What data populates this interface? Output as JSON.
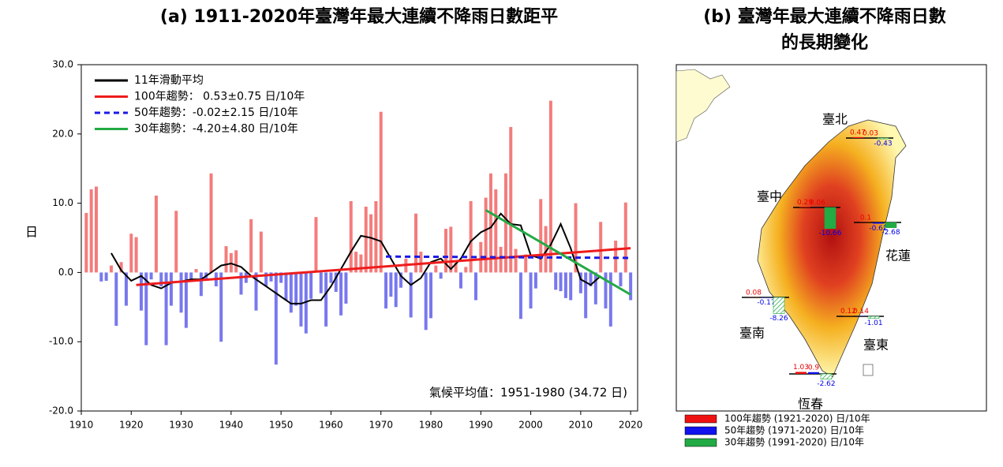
{
  "chart_data": {
    "type": "bar",
    "title": "(a) 1911-2020年臺灣年最大連續不降雨日數距平",
    "y_label": "日",
    "annotation": "氣候平均值：1951-1980 (34.72 日)",
    "positive_color": "#f47c7c",
    "negative_color": "#7878ee",
    "x": [
      1911,
      1912,
      1913,
      1914,
      1915,
      1916,
      1917,
      1918,
      1919,
      1920,
      1921,
      1922,
      1923,
      1924,
      1925,
      1926,
      1927,
      1928,
      1929,
      1930,
      1931,
      1932,
      1933,
      1934,
      1935,
      1936,
      1937,
      1938,
      1939,
      1940,
      1941,
      1942,
      1943,
      1944,
      1945,
      1946,
      1947,
      1948,
      1949,
      1950,
      1951,
      1952,
      1953,
      1954,
      1955,
      1956,
      1957,
      1958,
      1959,
      1960,
      1961,
      1962,
      1963,
      1964,
      1965,
      1966,
      1967,
      1968,
      1969,
      1970,
      1971,
      1972,
      1973,
      1974,
      1975,
      1976,
      1977,
      1978,
      1979,
      1980,
      1981,
      1982,
      1983,
      1984,
      1985,
      1986,
      1987,
      1988,
      1989,
      1990,
      1991,
      1992,
      1993,
      1994,
      1995,
      1996,
      1997,
      1998,
      1999,
      2000,
      2001,
      2002,
      2003,
      2004,
      2005,
      2006,
      2007,
      2008,
      2009,
      2010,
      2011,
      2012,
      2013,
      2014,
      2015,
      2016,
      2017,
      2018,
      2019,
      2020
    ],
    "values": [
      8.6,
      12.0,
      12.4,
      -1.3,
      -1.2,
      1.0,
      -7.7,
      1.5,
      -4.8,
      5.6,
      5.1,
      -5.5,
      -10.5,
      -1.0,
      11.1,
      -2.0,
      -10.5,
      -4.8,
      8.9,
      -5.8,
      -8.0,
      -1.2,
      0.5,
      -3.4,
      -1.0,
      14.3,
      -2.0,
      -10.0,
      3.8,
      2.8,
      3.2,
      -3.2,
      -1.5,
      7.7,
      -5.5,
      5.9,
      -2.0,
      -1.3,
      -13.3,
      -1.5,
      -4.0,
      -5.8,
      -4.8,
      -7.8,
      -8.8,
      -3.8,
      8.0,
      -3.0,
      -7.8,
      -1.5,
      -2.8,
      -6.2,
      -4.5,
      10.3,
      3.0,
      2.6,
      9.5,
      8.4,
      10.3,
      23.2,
      -5.2,
      -3.5,
      -5.0,
      -2.2,
      2.0,
      -6.5,
      8.5,
      3.0,
      -8.3,
      -6.6,
      1.0,
      -0.9,
      6.3,
      6.6,
      1.4,
      -2.3,
      0.8,
      10.3,
      -4.0,
      4.4,
      10.8,
      14.3,
      12.0,
      3.7,
      14.3,
      21.0,
      3.4,
      -6.7,
      2.6,
      -5.2,
      -2.3,
      10.6,
      6.7,
      24.8,
      -2.5,
      -2.7,
      -3.7,
      -4.0,
      10.0,
      -3.0,
      -6.6,
      -2.0,
      -4.6,
      7.3,
      -5.2,
      -7.8,
      4.6,
      -2.0,
      10.1,
      -4.0
    ],
    "series": [
      {
        "name": "11年滑動平均",
        "color": "#000000",
        "dash": false,
        "x": [
          1916,
          1918,
          1920,
          1922,
          1924,
          1926,
          1928,
          1930,
          1932,
          1934,
          1936,
          1938,
          1940,
          1942,
          1944,
          1946,
          1948,
          1950,
          1952,
          1954,
          1956,
          1958,
          1960,
          1962,
          1964,
          1966,
          1968,
          1970,
          1972,
          1974,
          1976,
          1978,
          1980,
          1982,
          1984,
          1986,
          1988,
          1990,
          1992,
          1994,
          1996,
          1998,
          2000,
          2002,
          2004,
          2006,
          2008,
          2010,
          2012,
          2014
        ],
        "values": [
          2.8,
          0.3,
          -1.2,
          -0.5,
          -1.8,
          -2.3,
          -1.5,
          -1.3,
          -1.0,
          -1.0,
          0.0,
          1.0,
          1.3,
          0.8,
          -0.5,
          -1.5,
          -2.5,
          -3.5,
          -4.5,
          -4.5,
          -4.0,
          -4.0,
          -2.0,
          0.5,
          3.0,
          5.3,
          5.0,
          4.5,
          2.0,
          -0.5,
          -1.8,
          -0.8,
          1.5,
          2.0,
          0.5,
          2.0,
          4.5,
          5.8,
          6.5,
          8.5,
          7.0,
          6.8,
          2.5,
          2.0,
          4.0,
          7.0,
          3.5,
          -1.0,
          -1.8,
          -0.5
        ]
      },
      {
        "name": "100年趨勢： 0.53±0.75 日/10年",
        "color": "#ee1c1c",
        "dash": false,
        "x": [
          1921,
          2020
        ],
        "values": [
          -1.8,
          3.5
        ]
      },
      {
        "name": "50年趨勢：-0.02±2.15 日/10年",
        "color": "#1a1ae6",
        "dash": true,
        "x": [
          1971,
          2020
        ],
        "values": [
          2.3,
          2.1
        ]
      },
      {
        "name": "30年趨勢：-4.20±4.80 日/10年",
        "color": "#22aa44",
        "dash": false,
        "x": [
          1991,
          2020
        ],
        "values": [
          9.0,
          -3.2
        ]
      }
    ],
    "xlim": [
      1910,
      2021.4
    ],
    "ylim": [
      -20,
      30
    ],
    "xticks": [
      1910,
      1920,
      1930,
      1940,
      1950,
      1960,
      1970,
      1980,
      1990,
      2000,
      2010,
      2020
    ],
    "yticks": [
      {
        "value": -20,
        "label": "-20.0"
      },
      {
        "value": -10,
        "label": "-10.0"
      },
      {
        "value": 0,
        "label": "0.0"
      },
      {
        "value": 10,
        "label": "10.0"
      },
      {
        "value": 20,
        "label": "20.0"
      },
      {
        "value": 30,
        "label": "30.0"
      }
    ]
  },
  "map_panel": {
    "title_lines": [
      "(b) 臺灣年最大連續不降雨日數",
      "的長期變化"
    ],
    "stations": [
      {
        "name": "臺北",
        "values": [
          0.47,
          0.03,
          -0.43
        ],
        "significant": false
      },
      {
        "name": "臺中",
        "values": [
          0.29,
          0.06,
          -10.66
        ],
        "significant": true
      },
      {
        "name": "花蓮",
        "values": [
          0.1,
          -0.62,
          -2.68
        ],
        "significant": true
      },
      {
        "name": "臺南",
        "values": [
          0.08,
          -0.17,
          -8.26
        ],
        "significant": false
      },
      {
        "name": "臺東",
        "values": [
          0.12,
          0.14,
          -1.01
        ],
        "significant": false
      },
      {
        "name": "恆春",
        "values": [
          1.03,
          0.9,
          -2.62
        ],
        "significant": false
      }
    ],
    "legend": [
      {
        "label": "100年趨勢 (1921-2020) 日/10年",
        "color": "#ee1111"
      },
      {
        "label": "50年趨勢 (1971-2020) 日/10年",
        "color": "#1111ee"
      },
      {
        "label": "30年趨勢 (1991-2020) 日/10年",
        "color": "#22aa44"
      }
    ]
  }
}
